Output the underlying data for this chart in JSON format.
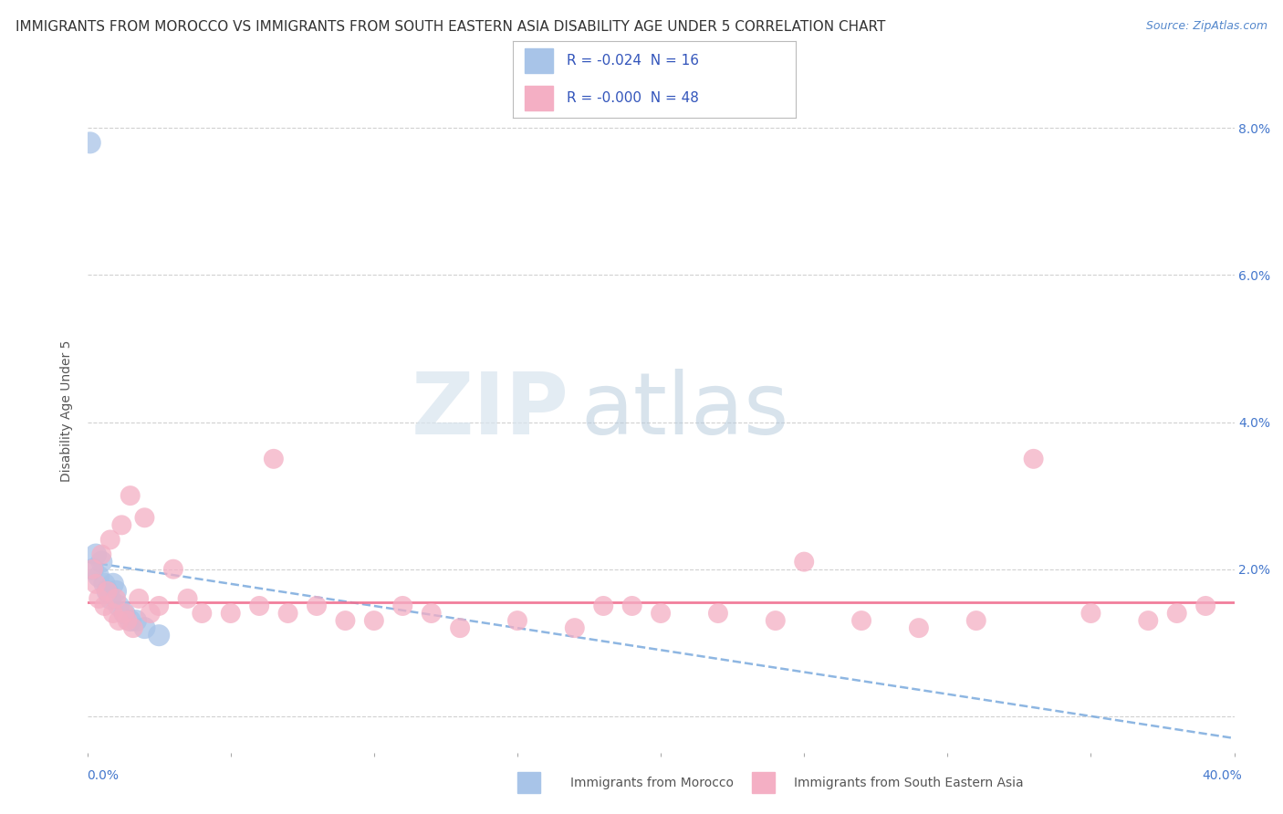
{
  "title": "IMMIGRANTS FROM MOROCCO VS IMMIGRANTS FROM SOUTH EASTERN ASIA DISABILITY AGE UNDER 5 CORRELATION CHART",
  "source": "Source: ZipAtlas.com",
  "ylabel": "Disability Age Under 5",
  "x_min": 0.0,
  "x_max": 0.4,
  "y_min": -0.005,
  "y_max": 0.088,
  "x_ticks": [
    0.0,
    0.05,
    0.1,
    0.15,
    0.2,
    0.25,
    0.3,
    0.35,
    0.4
  ],
  "x_tick_labels": [
    "",
    "",
    "",
    "",
    "",
    "",
    "",
    "",
    ""
  ],
  "y_ticks": [
    0.0,
    0.02,
    0.04,
    0.06,
    0.08
  ],
  "y_tick_labels": [
    "",
    "2.0%",
    "4.0%",
    "6.0%",
    "8.0%"
  ],
  "legend1_label": "R = -0.024  N = 16",
  "legend2_label": "R = -0.000  N = 48",
  "color_morocco": "#a8c4e8",
  "color_sea": "#f4afc4",
  "trend_color_morocco": "#7aaadd",
  "trend_color_sea": "#f07090",
  "watermark_zip": "ZIP",
  "watermark_atlas": "atlas",
  "morocco_x": [
    0.002,
    0.003,
    0.004,
    0.005,
    0.006,
    0.007,
    0.008,
    0.009,
    0.01,
    0.011,
    0.013,
    0.015,
    0.017,
    0.02,
    0.025,
    0.001
  ],
  "morocco_y": [
    0.02,
    0.022,
    0.019,
    0.021,
    0.018,
    0.017,
    0.016,
    0.018,
    0.017,
    0.015,
    0.014,
    0.013,
    0.013,
    0.012,
    0.011,
    0.078
  ],
  "sea_x": [
    0.002,
    0.003,
    0.004,
    0.005,
    0.006,
    0.007,
    0.008,
    0.009,
    0.01,
    0.011,
    0.012,
    0.013,
    0.014,
    0.015,
    0.016,
    0.018,
    0.02,
    0.022,
    0.025,
    0.03,
    0.035,
    0.04,
    0.05,
    0.06,
    0.07,
    0.08,
    0.09,
    0.1,
    0.11,
    0.13,
    0.15,
    0.17,
    0.19,
    0.2,
    0.22,
    0.24,
    0.27,
    0.29,
    0.31,
    0.33,
    0.35,
    0.37,
    0.38,
    0.39,
    0.25,
    0.18,
    0.12,
    0.065
  ],
  "sea_y": [
    0.02,
    0.018,
    0.016,
    0.022,
    0.015,
    0.017,
    0.024,
    0.014,
    0.016,
    0.013,
    0.026,
    0.014,
    0.013,
    0.03,
    0.012,
    0.016,
    0.027,
    0.014,
    0.015,
    0.02,
    0.016,
    0.014,
    0.014,
    0.015,
    0.014,
    0.015,
    0.013,
    0.013,
    0.015,
    0.012,
    0.013,
    0.012,
    0.015,
    0.014,
    0.014,
    0.013,
    0.013,
    0.012,
    0.013,
    0.035,
    0.014,
    0.013,
    0.014,
    0.015,
    0.021,
    0.015,
    0.014,
    0.035
  ],
  "morocco_trend_x": [
    0.0,
    0.4
  ],
  "morocco_trend_y": [
    0.021,
    -0.003
  ],
  "sea_trend_y": [
    0.0155,
    0.0155
  ],
  "background_color": "#ffffff",
  "grid_color": "#cccccc",
  "title_fontsize": 11,
  "axis_label_fontsize": 10,
  "tick_fontsize": 10,
  "legend_fontsize": 11
}
